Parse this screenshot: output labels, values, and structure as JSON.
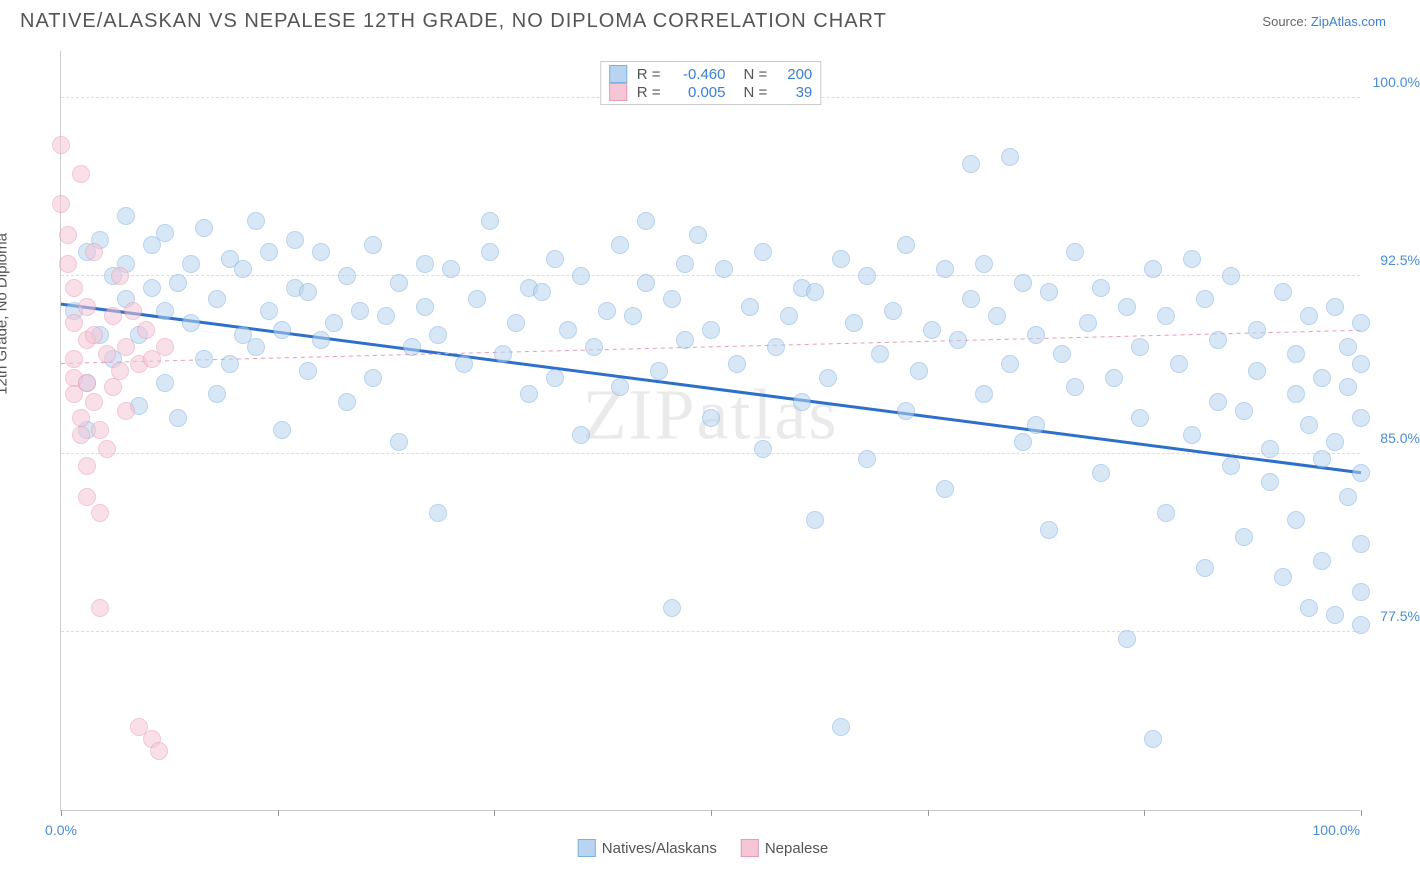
{
  "title": "NATIVE/ALASKAN VS NEPALESE 12TH GRADE, NO DIPLOMA CORRELATION CHART",
  "source_label": "Source:",
  "source_name": "ZipAtlas.com",
  "ylabel": "12th Grade, No Diploma",
  "watermark": "ZIPatlas",
  "chart": {
    "type": "scatter",
    "xlim": [
      0,
      100
    ],
    "ylim": [
      70,
      102
    ],
    "yticks": [
      77.5,
      85.0,
      92.5,
      100.0
    ],
    "ytick_labels": [
      "77.5%",
      "85.0%",
      "92.5%",
      "100.0%"
    ],
    "xticks": [
      0,
      16.67,
      33.33,
      50,
      66.67,
      83.33,
      100
    ],
    "xtick_left_label": "0.0%",
    "xtick_right_label": "100.0%",
    "background_color": "#ffffff",
    "grid_color": "#dddddd",
    "series": [
      {
        "name": "Natives/Alaskans",
        "fill": "#b8d4f0",
        "stroke": "#7fb0e0",
        "marker_radius": 9,
        "fill_opacity": 0.55,
        "R": "-0.460",
        "N": "200",
        "trend": {
          "x1": 0,
          "y1": 91.3,
          "x2": 100,
          "y2": 84.2,
          "color": "#2e6fc9",
          "width": 3,
          "dash": "none"
        },
        "points": [
          [
            1,
            91
          ],
          [
            2,
            88
          ],
          [
            2,
            86
          ],
          [
            2,
            93.5
          ],
          [
            3,
            90
          ],
          [
            3,
            94
          ],
          [
            4,
            89
          ],
          [
            4,
            92.5
          ],
          [
            5,
            91.5
          ],
          [
            5,
            93
          ],
          [
            5,
            95
          ],
          [
            6,
            87
          ],
          [
            6,
            90
          ],
          [
            7,
            92
          ],
          [
            7,
            93.8
          ],
          [
            8,
            88
          ],
          [
            8,
            91
          ],
          [
            8,
            94.3
          ],
          [
            9,
            86.5
          ],
          [
            9,
            92.2
          ],
          [
            10,
            90.5
          ],
          [
            10,
            93
          ],
          [
            11,
            89
          ],
          [
            11,
            94.5
          ],
          [
            12,
            87.5
          ],
          [
            12,
            91.5
          ],
          [
            13,
            93.2
          ],
          [
            13,
            88.8
          ],
          [
            14,
            90
          ],
          [
            14,
            92.8
          ],
          [
            15,
            94.8
          ],
          [
            15,
            89.5
          ],
          [
            16,
            91
          ],
          [
            16,
            93.5
          ],
          [
            17,
            86
          ],
          [
            17,
            90.2
          ],
          [
            18,
            92
          ],
          [
            18,
            94
          ],
          [
            19,
            88.5
          ],
          [
            19,
            91.8
          ],
          [
            20,
            93.5
          ],
          [
            20,
            89.8
          ],
          [
            21,
            90.5
          ],
          [
            22,
            92.5
          ],
          [
            22,
            87.2
          ],
          [
            23,
            91
          ],
          [
            24,
            93.8
          ],
          [
            24,
            88.2
          ],
          [
            25,
            90.8
          ],
          [
            26,
            92.2
          ],
          [
            26,
            85.5
          ],
          [
            27,
            89.5
          ],
          [
            28,
            93
          ],
          [
            28,
            91.2
          ],
          [
            29,
            82.5
          ],
          [
            29,
            90
          ],
          [
            30,
            92.8
          ],
          [
            31,
            88.8
          ],
          [
            32,
            91.5
          ],
          [
            33,
            93.5
          ],
          [
            33,
            94.8
          ],
          [
            34,
            89.2
          ],
          [
            35,
            90.5
          ],
          [
            36,
            87.5
          ],
          [
            36,
            92
          ],
          [
            37,
            91.8
          ],
          [
            38,
            93.2
          ],
          [
            38,
            88.2
          ],
          [
            39,
            90.2
          ],
          [
            40,
            85.8
          ],
          [
            40,
            92.5
          ],
          [
            41,
            89.5
          ],
          [
            42,
            91
          ],
          [
            43,
            93.8
          ],
          [
            43,
            87.8
          ],
          [
            44,
            90.8
          ],
          [
            45,
            92.2
          ],
          [
            45,
            94.8
          ],
          [
            46,
            88.5
          ],
          [
            47,
            78.5
          ],
          [
            47,
            91.5
          ],
          [
            48,
            89.8
          ],
          [
            48,
            93
          ],
          [
            49,
            94.2
          ],
          [
            50,
            86.5
          ],
          [
            50,
            90.2
          ],
          [
            51,
            92.8
          ],
          [
            52,
            88.8
          ],
          [
            53,
            91.2
          ],
          [
            54,
            93.5
          ],
          [
            54,
            85.2
          ],
          [
            55,
            89.5
          ],
          [
            56,
            90.8
          ],
          [
            57,
            92
          ],
          [
            57,
            87.2
          ],
          [
            58,
            82.2
          ],
          [
            58,
            91.8
          ],
          [
            59,
            88.2
          ],
          [
            60,
            93.2
          ],
          [
            60,
            73.5
          ],
          [
            61,
            90.5
          ],
          [
            62,
            84.8
          ],
          [
            62,
            92.5
          ],
          [
            63,
            89.2
          ],
          [
            64,
            91
          ],
          [
            65,
            86.8
          ],
          [
            65,
            93.8
          ],
          [
            66,
            88.5
          ],
          [
            67,
            90.2
          ],
          [
            68,
            92.8
          ],
          [
            68,
            83.5
          ],
          [
            69,
            89.8
          ],
          [
            70,
            91.5
          ],
          [
            70,
            97.2
          ],
          [
            71,
            87.5
          ],
          [
            71,
            93
          ],
          [
            72,
            90.8
          ],
          [
            73,
            97.5
          ],
          [
            73,
            88.8
          ],
          [
            74,
            85.5
          ],
          [
            74,
            92.2
          ],
          [
            75,
            86.2
          ],
          [
            75,
            90
          ],
          [
            76,
            81.8
          ],
          [
            76,
            91.8
          ],
          [
            77,
            89.2
          ],
          [
            78,
            93.5
          ],
          [
            78,
            87.8
          ],
          [
            79,
            90.5
          ],
          [
            80,
            84.2
          ],
          [
            80,
            92
          ],
          [
            81,
            88.2
          ],
          [
            82,
            77.2
          ],
          [
            82,
            91.2
          ],
          [
            83,
            89.5
          ],
          [
            83,
            86.5
          ],
          [
            84,
            92.8
          ],
          [
            84,
            73
          ],
          [
            85,
            90.8
          ],
          [
            85,
            82.5
          ],
          [
            86,
            88.8
          ],
          [
            87,
            85.8
          ],
          [
            87,
            93.2
          ],
          [
            88,
            91.5
          ],
          [
            88,
            80.2
          ],
          [
            89,
            87.2
          ],
          [
            89,
            89.8
          ],
          [
            90,
            84.5
          ],
          [
            90,
            92.5
          ],
          [
            91,
            86.8
          ],
          [
            91,
            81.5
          ],
          [
            92,
            90.2
          ],
          [
            92,
            88.5
          ],
          [
            93,
            83.8
          ],
          [
            93,
            85.2
          ],
          [
            94,
            91.8
          ],
          [
            94,
            79.8
          ],
          [
            95,
            87.5
          ],
          [
            95,
            89.2
          ],
          [
            95,
            82.2
          ],
          [
            96,
            86.2
          ],
          [
            96,
            78.5
          ],
          [
            96,
            90.8
          ],
          [
            97,
            88.2
          ],
          [
            97,
            84.8
          ],
          [
            97,
            80.5
          ],
          [
            98,
            85.5
          ],
          [
            98,
            91.2
          ],
          [
            98,
            78.2
          ],
          [
            99,
            83.2
          ],
          [
            99,
            87.8
          ],
          [
            99,
            89.5
          ],
          [
            100,
            77.8
          ],
          [
            100,
            86.5
          ],
          [
            100,
            81.2
          ],
          [
            100,
            84.2
          ],
          [
            100,
            90.5
          ],
          [
            100,
            79.2
          ],
          [
            100,
            88.8
          ]
        ]
      },
      {
        "name": "Nepalese",
        "fill": "#f5c6d6",
        "stroke": "#e89bb5",
        "marker_radius": 9,
        "fill_opacity": 0.55,
        "R": "0.005",
        "N": "39",
        "trend": {
          "x1": 0,
          "y1": 88.8,
          "x2": 100,
          "y2": 90.2,
          "color": "#e89bb5",
          "width": 1,
          "dash": "4,4"
        },
        "points": [
          [
            0,
            98
          ],
          [
            0,
            95.5
          ],
          [
            0.5,
            94.2
          ],
          [
            0.5,
            93
          ],
          [
            1,
            92
          ],
          [
            1,
            90.5
          ],
          [
            1,
            89
          ],
          [
            1,
            88.2
          ],
          [
            1,
            87.5
          ],
          [
            1.5,
            96.8
          ],
          [
            1.5,
            86.5
          ],
          [
            1.5,
            85.8
          ],
          [
            2,
            91.2
          ],
          [
            2,
            89.8
          ],
          [
            2,
            88
          ],
          [
            2,
            84.5
          ],
          [
            2,
            83.2
          ],
          [
            2.5,
            93.5
          ],
          [
            2.5,
            90
          ],
          [
            2.5,
            87.2
          ],
          [
            3,
            86
          ],
          [
            3,
            82.5
          ],
          [
            3,
            78.5
          ],
          [
            3.5,
            89.2
          ],
          [
            3.5,
            85.2
          ],
          [
            4,
            90.8
          ],
          [
            4,
            87.8
          ],
          [
            4.5,
            92.5
          ],
          [
            4.5,
            88.5
          ],
          [
            5,
            89.5
          ],
          [
            5,
            86.8
          ],
          [
            5.5,
            91
          ],
          [
            6,
            88.8
          ],
          [
            6,
            73.5
          ],
          [
            6.5,
            90.2
          ],
          [
            7,
            89
          ],
          [
            7,
            73
          ],
          [
            7.5,
            72.5
          ],
          [
            8,
            89.5
          ]
        ]
      }
    ]
  },
  "legend_bottom": [
    {
      "label": "Natives/Alaskans",
      "fill": "#b8d4f0",
      "stroke": "#7fb0e0"
    },
    {
      "label": "Nepalese",
      "fill": "#f5c6d6",
      "stroke": "#e89bb5"
    }
  ]
}
